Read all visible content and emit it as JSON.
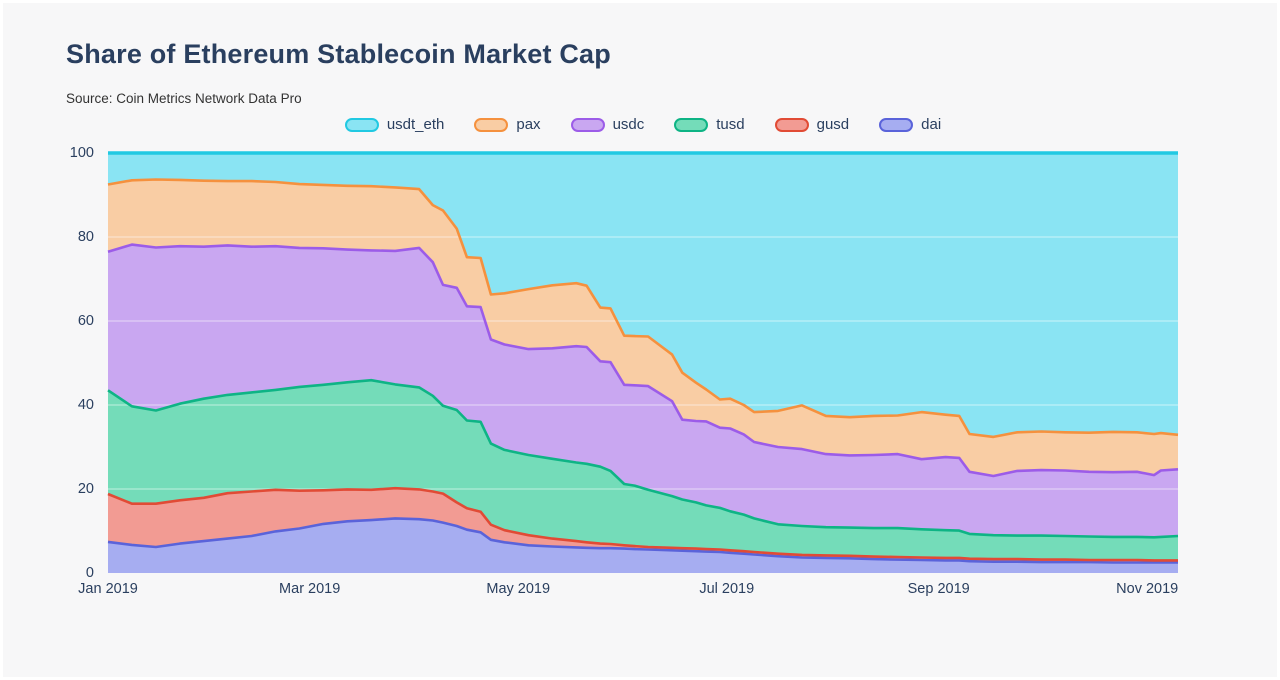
{
  "page": {
    "background": "#f7f7f8"
  },
  "header": {
    "title": "Share of Ethereum Stablecoin Market Cap",
    "source": "Source: Coin Metrics Network Data Pro"
  },
  "legend": {
    "position": "top-center",
    "order": [
      "usdt_eth",
      "pax",
      "usdc",
      "tusd",
      "gusd",
      "dai"
    ]
  },
  "axes": {
    "y_ticks": [
      0,
      20,
      40,
      60,
      80,
      100
    ],
    "y_range": [
      0,
      100
    ],
    "x_ticks": [
      {
        "label": "Jan 2019",
        "day": 0
      },
      {
        "label": "Mar 2019",
        "day": 59
      },
      {
        "label": "May 2019",
        "day": 120
      },
      {
        "label": "Jul 2019",
        "day": 181
      },
      {
        "label": "Sep 2019",
        "day": 243
      },
      {
        "label": "Nov 2019",
        "day": 304
      }
    ],
    "x_range_days": [
      0,
      313
    ],
    "grid_color": "rgba(255,255,255,0.45)"
  },
  "chart_data": {
    "type": "area",
    "stacked": true,
    "normalized_percent": true,
    "title": "Share of Ethereum Stablecoin Market Cap",
    "xlabel": "",
    "ylabel": "",
    "ylim": [
      0,
      100
    ],
    "x_unit": "days since Jan 1 2019",
    "days": [
      0,
      7,
      14,
      21,
      28,
      35,
      42,
      49,
      56,
      63,
      70,
      77,
      84,
      91,
      95,
      98,
      102,
      105,
      109,
      112,
      116,
      123,
      130,
      137,
      140,
      144,
      147,
      151,
      154,
      158,
      165,
      168,
      172,
      175,
      179,
      182,
      186,
      189,
      196,
      203,
      210,
      217,
      224,
      231,
      238,
      245,
      249,
      252,
      259,
      266,
      273,
      280,
      287,
      294,
      301,
      306,
      308,
      313
    ],
    "series": [
      {
        "name": "dai",
        "line": "#5a63da",
        "fill": "#a6adf1",
        "values": [
          7.4,
          6.7,
          6.2,
          7.0,
          7.6,
          8.2,
          8.8,
          9.9,
          10.6,
          11.7,
          12.3,
          12.6,
          13.0,
          12.8,
          12.5,
          12.0,
          11.2,
          10.3,
          9.7,
          7.9,
          7.3,
          6.6,
          6.3,
          6.1,
          6.0,
          5.9,
          5.9,
          5.8,
          5.7,
          5.6,
          5.4,
          5.3,
          5.2,
          5.1,
          5.0,
          4.8,
          4.6,
          4.4,
          4.0,
          3.7,
          3.6,
          3.5,
          3.3,
          3.2,
          3.1,
          3.0,
          3.0,
          2.8,
          2.7,
          2.7,
          2.6,
          2.6,
          2.6,
          2.5,
          2.5,
          2.5,
          2.5,
          2.5
        ]
      },
      {
        "name": "gusd",
        "line": "#e14b35",
        "fill": "#f29b93",
        "values": [
          11.4,
          9.8,
          10.3,
          10.3,
          10.3,
          10.8,
          10.6,
          9.9,
          9.0,
          8.0,
          7.6,
          7.2,
          7.2,
          7.1,
          6.9,
          6.9,
          5.6,
          5.1,
          4.9,
          3.6,
          2.9,
          2.4,
          1.9,
          1.5,
          1.3,
          1.1,
          1.0,
          0.8,
          0.7,
          0.6,
          0.6,
          0.6,
          0.6,
          0.6,
          0.6,
          0.6,
          0.6,
          0.6,
          0.6,
          0.6,
          0.6,
          0.6,
          0.6,
          0.6,
          0.6,
          0.6,
          0.6,
          0.6,
          0.6,
          0.6,
          0.6,
          0.6,
          0.5,
          0.6,
          0.6,
          0.5,
          0.5,
          0.5
        ]
      },
      {
        "name": "tusd",
        "line": "#0eb485",
        "fill": "#74dcb9",
        "values": [
          24.7,
          23.2,
          22.2,
          23.0,
          23.6,
          23.4,
          23.6,
          23.8,
          24.7,
          25.1,
          25.5,
          26.1,
          24.7,
          24.3,
          22.8,
          20.9,
          22.0,
          20.9,
          21.4,
          19.3,
          19.1,
          19.1,
          19.0,
          18.7,
          18.7,
          18.3,
          17.4,
          14.6,
          14.4,
          13.6,
          12.3,
          11.6,
          11.0,
          10.4,
          9.9,
          9.3,
          8.7,
          8.0,
          7.0,
          6.9,
          6.7,
          6.7,
          6.8,
          6.9,
          6.7,
          6.6,
          6.5,
          5.9,
          5.7,
          5.6,
          5.7,
          5.6,
          5.6,
          5.5,
          5.5,
          5.5,
          5.6,
          5.8
        ]
      },
      {
        "name": "usdc",
        "line": "#9c5ce8",
        "fill": "#c9a7f1",
        "values": [
          33.0,
          38.5,
          38.8,
          37.5,
          36.2,
          35.6,
          34.7,
          34.2,
          33.1,
          32.5,
          31.6,
          30.9,
          31.8,
          33.2,
          31.8,
          28.8,
          29.1,
          27.2,
          27.3,
          24.8,
          25.1,
          25.2,
          26.3,
          27.7,
          27.8,
          25.1,
          25.9,
          23.6,
          23.9,
          24.7,
          22.6,
          19.0,
          19.4,
          20.0,
          19.1,
          19.7,
          19.1,
          18.2,
          18.4,
          18.3,
          17.4,
          17.2,
          17.4,
          17.6,
          16.7,
          17.4,
          17.3,
          14.8,
          14.1,
          15.4,
          15.6,
          15.6,
          15.4,
          15.4,
          15.5,
          14.8,
          15.8,
          15.9
        ]
      },
      {
        "name": "pax",
        "line": "#f5913e",
        "fill": "#f9cda4",
        "values": [
          16.0,
          15.3,
          16.2,
          15.8,
          15.7,
          15.3,
          15.6,
          15.3,
          15.2,
          15.1,
          15.2,
          15.3,
          15.1,
          14.0,
          13.6,
          17.7,
          14.1,
          11.7,
          11.7,
          10.7,
          12.2,
          14.3,
          15.0,
          15.0,
          14.6,
          12.8,
          12.8,
          11.7,
          11.7,
          11.8,
          11.1,
          11.2,
          9.1,
          7.6,
          6.7,
          7.1,
          7.0,
          7.1,
          8.6,
          10.4,
          9.1,
          9.1,
          9.3,
          9.2,
          11.2,
          10.1,
          10.0,
          9.0,
          9.3,
          9.2,
          9.2,
          9.1,
          9.3,
          9.6,
          9.4,
          9.8,
          8.9,
          8.2
        ]
      },
      {
        "name": "usdt_eth",
        "line": "#21c9e2",
        "fill": "#8ae4f3",
        "values": [
          7.5,
          6.5,
          6.3,
          6.4,
          6.6,
          6.7,
          6.7,
          6.9,
          7.4,
          7.6,
          7.8,
          7.9,
          8.2,
          8.6,
          12.4,
          13.7,
          18.0,
          24.8,
          25.0,
          33.7,
          33.4,
          32.4,
          31.5,
          31.0,
          31.6,
          36.8,
          37.0,
          43.5,
          43.6,
          43.7,
          48.0,
          52.3,
          54.7,
          56.3,
          58.7,
          58.5,
          60.0,
          61.7,
          61.4,
          60.1,
          62.6,
          62.9,
          62.6,
          62.5,
          61.7,
          62.3,
          62.6,
          66.9,
          67.6,
          66.5,
          66.3,
          66.5,
          66.6,
          66.4,
          66.5,
          66.9,
          66.7,
          67.1
        ]
      }
    ],
    "legend_position": "top-center",
    "grid": "horizontal"
  }
}
